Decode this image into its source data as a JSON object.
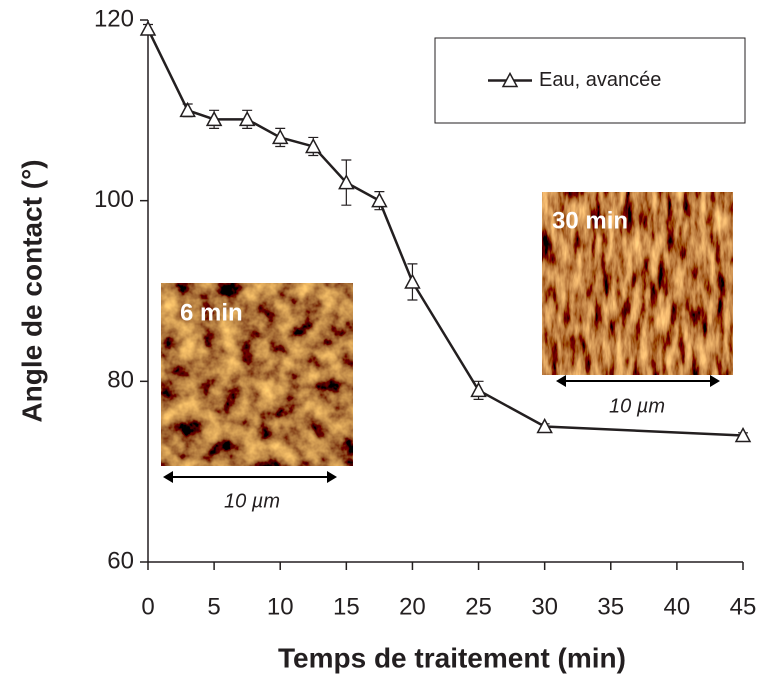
{
  "chart_data": {
    "type": "line",
    "x_label": "Temps de traitement (min)",
    "y_label": "Angle de contact (°)",
    "x": [
      0,
      3,
      5,
      7.5,
      10,
      12.5,
      15,
      17.5,
      20,
      25,
      30,
      45
    ],
    "series": [
      {
        "name": "Eau, avancée",
        "color": "#231f20",
        "values": [
          119,
          110,
          109,
          109,
          107,
          106,
          102,
          100,
          91,
          79,
          75,
          74
        ],
        "errors": [
          0.5,
          0.7,
          1,
          1,
          1,
          1,
          2.5,
          1,
          2,
          1,
          0.3,
          0.3
        ]
      }
    ],
    "xlim": [
      0,
      45
    ],
    "xticks": [
      0,
      5,
      10,
      15,
      20,
      25,
      30,
      35,
      40,
      45
    ],
    "ylim": [
      60,
      120
    ],
    "yticks": [
      60,
      80,
      100,
      120
    ],
    "legend": "upper right",
    "annotations": [
      "6 min",
      "10 µm",
      "30 min",
      "10 µm"
    ]
  }
}
